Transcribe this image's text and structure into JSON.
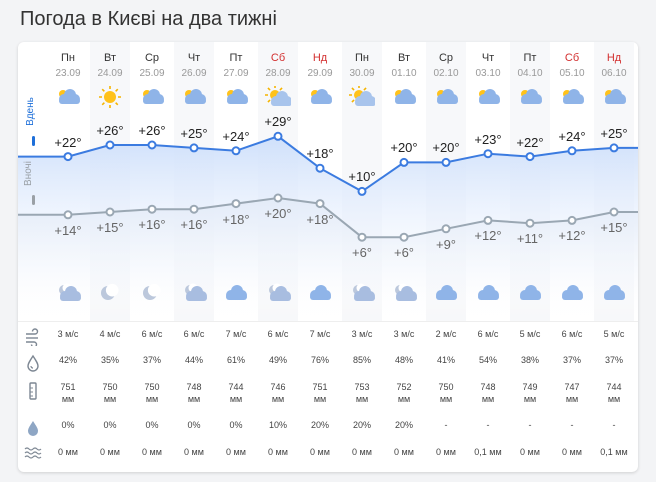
{
  "title": "Погода в Києві на два тижні",
  "side": {
    "day": "Вдень",
    "night": "Вночі"
  },
  "units": {
    "pressure": "мм",
    "wind": "м/с",
    "precip": "мм"
  },
  "colors": {
    "day_line": "#3b7be0",
    "night_line": "#9aa7b3",
    "weekend": "#d32f2f"
  },
  "days": [
    {
      "wd": "Пн",
      "date": "23.09",
      "red": false,
      "di": "cloud-sun-icon",
      "hi": "+22°",
      "lo": "+14°",
      "ni": "cloud-moon-icon",
      "wind": "3 м/с",
      "hum": "42%",
      "p": "751",
      "pu": "мм",
      "prob": "0%",
      "prec": "0 мм",
      "hv": 22,
      "lv": 14
    },
    {
      "wd": "Вт",
      "date": "24.09",
      "red": false,
      "di": "sun-icon",
      "hi": "+26°",
      "lo": "+15°",
      "ni": "moon-icon",
      "wind": "4 м/с",
      "hum": "35%",
      "p": "750",
      "pu": "мм",
      "prob": "0%",
      "prec": "0 мм",
      "hv": 26,
      "lv": 15
    },
    {
      "wd": "Ср",
      "date": "25.09",
      "red": false,
      "di": "cloud-sun-icon",
      "hi": "+26°",
      "lo": "+16°",
      "ni": "moon-icon",
      "wind": "6 м/с",
      "hum": "37%",
      "p": "750",
      "pu": "мм",
      "prob": "0%",
      "prec": "0 мм",
      "hv": 26,
      "lv": 16
    },
    {
      "wd": "Чт",
      "date": "26.09",
      "red": false,
      "di": "cloud-sun-icon",
      "hi": "+25°",
      "lo": "+16°",
      "ni": "cloud-moon-icon",
      "wind": "6 м/с",
      "hum": "44%",
      "p": "748",
      "pu": "мм",
      "prob": "0%",
      "prec": "0 мм",
      "hv": 25,
      "lv": 16
    },
    {
      "wd": "Пт",
      "date": "27.09",
      "red": false,
      "di": "cloud-sun-icon",
      "hi": "+24°",
      "lo": "+18°",
      "ni": "cloud-icon",
      "wind": "7 м/с",
      "hum": "61%",
      "p": "744",
      "pu": "мм",
      "prob": "0%",
      "prec": "0 мм",
      "hv": 24,
      "lv": 18
    },
    {
      "wd": "Сб",
      "date": "28.09",
      "red": true,
      "di": "sun-cloud-icon",
      "hi": "+29°",
      "lo": "+20°",
      "ni": "cloud-moon-icon",
      "wind": "6 м/с",
      "hum": "49%",
      "p": "746",
      "pu": "мм",
      "prob": "10%",
      "prec": "0 мм",
      "hv": 29,
      "lv": 20
    },
    {
      "wd": "Нд",
      "date": "29.09",
      "red": true,
      "di": "cloud-sun-icon",
      "hi": "+18°",
      "lo": "+18°",
      "ni": "cloud-icon",
      "wind": "7 м/с",
      "hum": "76%",
      "p": "751",
      "pu": "мм",
      "prob": "20%",
      "prec": "0 мм",
      "hv": 18,
      "lv": 18
    },
    {
      "wd": "Пн",
      "date": "30.09",
      "red": false,
      "di": "sun-cloud-icon",
      "hi": "+10°",
      "lo": "+6°",
      "ni": "cloud-moon-icon",
      "wind": "3 м/с",
      "hum": "85%",
      "p": "753",
      "pu": "мм",
      "prob": "20%",
      "prec": "0 мм",
      "hv": 10,
      "lv": 6
    },
    {
      "wd": "Вт",
      "date": "01.10",
      "red": false,
      "di": "cloud-sun-icon",
      "hi": "+20°",
      "lo": "+6°",
      "ni": "cloud-moon-icon",
      "wind": "3 м/с",
      "hum": "48%",
      "p": "752",
      "pu": "мм",
      "prob": "20%",
      "prec": "0 мм",
      "hv": 20,
      "lv": 6
    },
    {
      "wd": "Ср",
      "date": "02.10",
      "red": false,
      "di": "cloud-sun-icon",
      "hi": "+20°",
      "lo": "+9°",
      "ni": "cloud-icon",
      "wind": "2 м/с",
      "hum": "41%",
      "p": "750",
      "pu": "мм",
      "prob": "-",
      "prec": "0 мм",
      "hv": 20,
      "lv": 9
    },
    {
      "wd": "Чт",
      "date": "03.10",
      "red": false,
      "di": "cloud-sun-icon",
      "hi": "+23°",
      "lo": "+12°",
      "ni": "cloud-icon",
      "wind": "6 м/с",
      "hum": "54%",
      "p": "748",
      "pu": "мм",
      "prob": "-",
      "prec": "0,1 мм",
      "hv": 23,
      "lv": 12
    },
    {
      "wd": "Пт",
      "date": "04.10",
      "red": false,
      "di": "cloud-sun-icon",
      "hi": "+22°",
      "lo": "+11°",
      "ni": "cloud-icon",
      "wind": "5 м/с",
      "hum": "38%",
      "p": "749",
      "pu": "мм",
      "prob": "-",
      "prec": "0 мм",
      "hv": 22,
      "lv": 11
    },
    {
      "wd": "Сб",
      "date": "05.10",
      "red": true,
      "di": "cloud-sun-icon",
      "hi": "+24°",
      "lo": "+12°",
      "ni": "cloud-icon",
      "wind": "6 м/с",
      "hum": "37%",
      "p": "747",
      "pu": "мм",
      "prob": "-",
      "prec": "0 мм",
      "hv": 24,
      "lv": 12
    },
    {
      "wd": "Нд",
      "date": "06.10",
      "red": true,
      "di": "cloud-sun-icon",
      "hi": "+25°",
      "lo": "+15°",
      "ni": "cloud-icon",
      "wind": "5 м/с",
      "hum": "37%",
      "p": "744",
      "pu": "мм",
      "prob": "-",
      "prec": "0,1 мм",
      "hv": 25,
      "lv": 15
    }
  ],
  "row_icons": [
    "wind-icon",
    "humidity-icon",
    "pressure-icon",
    "precip-probability-icon",
    "precipitation-icon"
  ]
}
